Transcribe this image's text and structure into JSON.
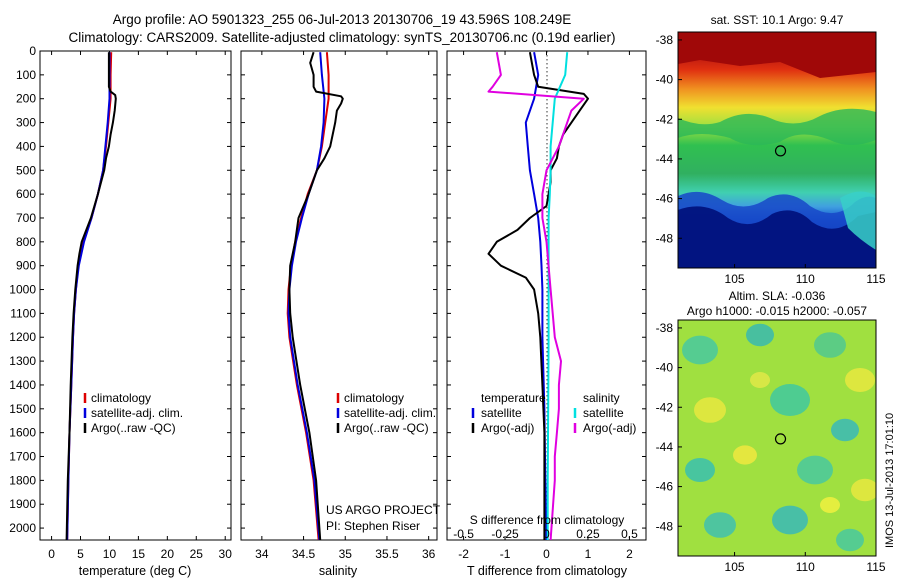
{
  "header": {
    "line1": "Argo profile: AO 5901323_255 06-Jul-2013 20130706_19 43.596S 108.249E",
    "line2": "Climatology: CARS2009. Satellite-adjusted climatology: synTS_20130706.nc (0.19d earlier)"
  },
  "credits": {
    "project": "US ARGO PROJECT",
    "pi": "PI: Stephen Riser",
    "imos": "IMOS 13-Jul-2013 17:01:10"
  },
  "colors": {
    "climatology": "#dd0000",
    "satellite": "#0000dd",
    "argo": "#000000",
    "sal_satellite": "#00e0e0",
    "sal_argo": "#e000e0"
  },
  "chart_data": [
    {
      "type": "line",
      "id": "temperature",
      "xlabel": "temperature (deg C)",
      "ylabel": "",
      "xlim": [
        -2,
        31
      ],
      "ylim": [
        2050,
        0
      ],
      "xticks": [
        0,
        5,
        10,
        15,
        20,
        25,
        30
      ],
      "yticks": [
        0,
        100,
        200,
        300,
        400,
        500,
        600,
        700,
        800,
        900,
        1000,
        1100,
        1200,
        1300,
        1400,
        1500,
        1600,
        1700,
        1800,
        1900,
        2000
      ],
      "legend": [
        "climatology",
        "satellite-adj. clim.",
        "Argo(..raw -QC)"
      ],
      "series": [
        {
          "name": "climatology",
          "color": "#dd0000",
          "depth": [
            5,
            100,
            200,
            300,
            400,
            500,
            600,
            700,
            800,
            900,
            1000,
            1100,
            1200,
            1400,
            1600,
            1800,
            2050
          ],
          "values": [
            10.3,
            10.2,
            10.2,
            9.8,
            9.4,
            8.9,
            8.0,
            6.9,
            5.5,
            4.6,
            4.2,
            3.9,
            3.7,
            3.4,
            3.1,
            2.9,
            2.7
          ]
        },
        {
          "name": "satellite-adj. clim.",
          "color": "#0000dd",
          "depth": [
            5,
            100,
            200,
            300,
            400,
            500,
            600,
            700,
            800,
            900,
            1000,
            1100,
            1200,
            1400,
            1600,
            1800,
            2050
          ],
          "values": [
            10.0,
            10.0,
            10.0,
            9.7,
            9.3,
            8.9,
            8.0,
            6.9,
            5.6,
            4.7,
            4.2,
            3.9,
            3.7,
            3.4,
            3.1,
            2.9,
            2.7
          ]
        },
        {
          "name": "Argo(..raw -QC)",
          "color": "#000000",
          "depth": [
            5,
            100,
            150,
            170,
            185,
            200,
            250,
            300,
            350,
            400,
            450,
            500,
            600,
            700,
            800,
            850,
            900,
            1000,
            1100,
            1200,
            1400,
            1600,
            1800,
            2050
          ],
          "values": [
            9.9,
            9.9,
            9.9,
            10.2,
            11.0,
            11.1,
            10.9,
            10.6,
            10.2,
            9.9,
            9.4,
            9.1,
            8.0,
            6.8,
            5.2,
            4.8,
            4.5,
            4.1,
            3.8,
            3.6,
            3.3,
            3.1,
            2.8,
            2.6
          ]
        }
      ]
    },
    {
      "type": "line",
      "id": "salinity",
      "xlabel": "salinity",
      "ylabel": "",
      "xlim": [
        33.75,
        36.1
      ],
      "ylim": [
        2050,
        0
      ],
      "xticks": [
        34,
        34.5,
        35,
        35.5,
        36
      ],
      "legend": [
        "climatology",
        "satellite-adj. clim.",
        "Argo(..raw -QC)"
      ],
      "series": [
        {
          "name": "climatology",
          "color": "#dd0000",
          "depth": [
            5,
            100,
            200,
            300,
            400,
            500,
            600,
            700,
            800,
            900,
            1000,
            1100,
            1200,
            1400,
            1600,
            1800,
            2050
          ],
          "values": [
            34.78,
            34.8,
            34.8,
            34.76,
            34.72,
            34.66,
            34.55,
            34.47,
            34.4,
            34.35,
            34.32,
            34.31,
            34.33,
            34.42,
            34.53,
            34.62,
            34.68
          ]
        },
        {
          "name": "satellite-adj. clim.",
          "color": "#0000dd",
          "depth": [
            5,
            100,
            200,
            300,
            400,
            500,
            600,
            700,
            800,
            900,
            1000,
            1100,
            1200,
            1400,
            1600,
            1800,
            2050
          ],
          "values": [
            34.7,
            34.72,
            34.75,
            34.74,
            34.71,
            34.66,
            34.56,
            34.48,
            34.41,
            34.36,
            34.33,
            34.32,
            34.34,
            34.43,
            34.54,
            34.63,
            34.69
          ]
        },
        {
          "name": "Argo(..raw -QC)",
          "color": "#000000",
          "depth": [
            5,
            50,
            100,
            150,
            170,
            190,
            200,
            220,
            250,
            300,
            350,
            400,
            450,
            500,
            600,
            700,
            800,
            900,
            1000,
            1100,
            1200,
            1400,
            1600,
            1800,
            2050
          ],
          "values": [
            34.62,
            34.58,
            34.62,
            34.62,
            34.65,
            34.95,
            34.97,
            34.95,
            34.9,
            34.88,
            34.85,
            34.82,
            34.75,
            34.66,
            34.56,
            34.44,
            34.4,
            34.34,
            34.33,
            34.34,
            34.37,
            34.46,
            34.57,
            34.65,
            34.7
          ]
        }
      ]
    },
    {
      "type": "line",
      "id": "differences",
      "xlabel": "T difference from climatology",
      "xlabel_top": "S difference from climatology",
      "xlim": [
        -2.4,
        2.4
      ],
      "ylim": [
        2050,
        0
      ],
      "xticks": [
        -2,
        -1,
        0,
        1,
        2
      ],
      "xticklabels_top": [
        "-0.5",
        "-0.25",
        "0",
        "0.25",
        "0.5"
      ],
      "legend_temperature": {
        "title": "temperature",
        "items": [
          "satellite",
          "Argo(-adj)"
        ]
      },
      "legend_salinity": {
        "title": "salinity",
        "items": [
          "satellite",
          "Argo(-adj)"
        ]
      },
      "series": [
        {
          "name": "temperature satellite",
          "color": "#0000dd",
          "depth": [
            5,
            100,
            200,
            300,
            400,
            500,
            600,
            700,
            800,
            900,
            1000,
            1200,
            1500,
            1800,
            2050
          ],
          "values": [
            -0.3,
            -0.2,
            -0.3,
            -0.5,
            -0.45,
            -0.4,
            -0.3,
            -0.2,
            -0.15,
            -0.12,
            -0.1,
            -0.1,
            -0.05,
            -0.03,
            0
          ]
        },
        {
          "name": "temperature Argo(-adj)",
          "color": "#000000",
          "depth": [
            5,
            100,
            150,
            180,
            200,
            250,
            300,
            350,
            400,
            450,
            500,
            550,
            600,
            650,
            700,
            750,
            800,
            850,
            900,
            950,
            1000,
            1100,
            1200,
            1400,
            1600,
            1800,
            2050
          ],
          "values": [
            -0.4,
            -0.3,
            -0.2,
            0.9,
            1.0,
            0.8,
            0.6,
            0.4,
            0.3,
            0.25,
            0.1,
            0.1,
            0.05,
            0.0,
            -0.4,
            -0.7,
            -1.2,
            -1.4,
            -1.1,
            -0.5,
            -0.3,
            -0.2,
            -0.15,
            -0.1,
            -0.05,
            -0.05,
            -0.05
          ]
        },
        {
          "name": "salinity satellite",
          "color": "#00e0e0",
          "depth": [
            5,
            100,
            200,
            300,
            400,
            500,
            600,
            700,
            800,
            1000,
            1200,
            1500,
            1800,
            2050
          ],
          "values": [
            0.5,
            0.45,
            0.2,
            0.15,
            0.1,
            0.1,
            0.08,
            0.05,
            0.05,
            0.05,
            0.05,
            0.04,
            0.03,
            0.03
          ]
        },
        {
          "name": "salinity Argo(-adj)",
          "color": "#e000e0",
          "depth": [
            5,
            100,
            150,
            170,
            200,
            250,
            300,
            400,
            500,
            600,
            700,
            800,
            1000,
            1200,
            1300,
            1400,
            1500,
            1600,
            1700,
            1800,
            2050
          ],
          "values": [
            -1.2,
            -1.1,
            -1.3,
            -1.4,
            0.9,
            0.6,
            0.5,
            0.3,
            0.0,
            -0.1,
            -0.1,
            0.0,
            0.1,
            0.2,
            0.35,
            0.3,
            0.3,
            0.25,
            0.2,
            0.2,
            0.1
          ]
        }
      ]
    },
    {
      "type": "heatmap",
      "id": "sst-map",
      "title": "sat. SST: 10.1  Argo: 9.47",
      "xlim": [
        101,
        115
      ],
      "ylim": [
        -49.5,
        -37.6
      ],
      "xticks": [
        105,
        110,
        115
      ],
      "yticks": [
        -38,
        -40,
        -42,
        -44,
        -46,
        -48
      ],
      "marker": {
        "lon": 108.249,
        "lat": -43.596
      }
    },
    {
      "type": "heatmap",
      "id": "sla-map",
      "title": "Altim. SLA: -0.036",
      "subtitle": "Argo h1000: -0.015 h2000: -0.057",
      "xlim": [
        101,
        115
      ],
      "ylim": [
        -49.5,
        -37.6
      ],
      "xticks": [
        105,
        110,
        115
      ],
      "yticks": [
        -38,
        -40,
        -42,
        -44,
        -46,
        -48
      ],
      "marker": {
        "lon": 108.249,
        "lat": -43.596
      }
    }
  ]
}
